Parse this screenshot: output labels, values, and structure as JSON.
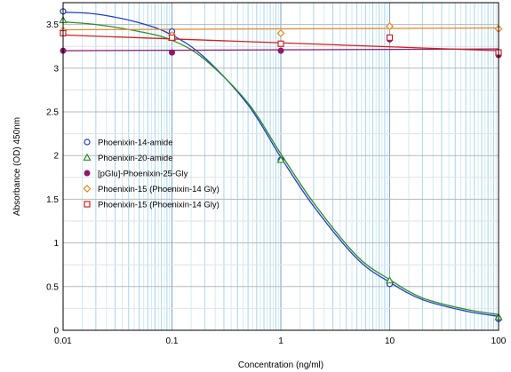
{
  "chart_data": {
    "type": "scatter",
    "xlabel": "Concentration (ng/ml)",
    "ylabel": "Absorbance (OD) 450nm",
    "xscale": "log",
    "xlim": [
      0.01,
      100
    ],
    "ylim": [
      0,
      3.75
    ],
    "x_tick_labels": [
      "0.01",
      "0.1",
      "1",
      "10",
      "100"
    ],
    "y_tick_labels": [
      "0",
      "0.5",
      "1",
      "1.5",
      "2",
      "2.5",
      "3",
      "3.5"
    ],
    "grid": true,
    "legend_position": "left-middle",
    "series": [
      {
        "name": "Phoenixin-14-amide",
        "color": "#1f3fbf",
        "marker": "circle-open",
        "points": [
          [
            0.01,
            3.65
          ],
          [
            0.1,
            3.42
          ],
          [
            1,
            1.95
          ],
          [
            10,
            0.53
          ],
          [
            100,
            0.13
          ]
        ],
        "curve": [
          [
            0.01,
            3.64
          ],
          [
            0.02,
            3.62
          ],
          [
            0.05,
            3.52
          ],
          [
            0.1,
            3.38
          ],
          [
            0.2,
            3.12
          ],
          [
            0.5,
            2.58
          ],
          [
            1,
            1.98
          ],
          [
            2,
            1.42
          ],
          [
            5,
            0.82
          ],
          [
            10,
            0.55
          ],
          [
            20,
            0.35
          ],
          [
            50,
            0.22
          ],
          [
            100,
            0.16
          ]
        ]
      },
      {
        "name": "Phoenixin-20-amide",
        "color": "#2e8b2e",
        "marker": "triangle-open",
        "points": [
          [
            0.01,
            3.55
          ],
          [
            0.1,
            3.35
          ],
          [
            1,
            1.95
          ],
          [
            10,
            0.57
          ],
          [
            100,
            0.15
          ]
        ],
        "curve": [
          [
            0.01,
            3.53
          ],
          [
            0.02,
            3.5
          ],
          [
            0.05,
            3.42
          ],
          [
            0.1,
            3.32
          ],
          [
            0.2,
            3.1
          ],
          [
            0.5,
            2.6
          ],
          [
            1,
            2.02
          ],
          [
            2,
            1.46
          ],
          [
            5,
            0.85
          ],
          [
            10,
            0.58
          ],
          [
            20,
            0.37
          ],
          [
            50,
            0.24
          ],
          [
            100,
            0.18
          ]
        ]
      },
      {
        "name": "[pGlu]-Phoenixin-25-Gly",
        "color": "#8b1a6b",
        "marker": "circle-filled",
        "points": [
          [
            0.01,
            3.2
          ],
          [
            0.1,
            3.18
          ],
          [
            1,
            3.2
          ],
          [
            10,
            3.33
          ],
          [
            100,
            3.15
          ]
        ],
        "curve": [
          [
            0.01,
            3.2
          ],
          [
            100,
            3.22
          ]
        ]
      },
      {
        "name": "Phoenixin-15 (Phoenixin-14 Gly)",
        "color": "#e08a2c",
        "marker": "diamond-open",
        "points": [
          [
            0.01,
            3.43
          ],
          [
            0.1,
            3.38
          ],
          [
            1,
            3.4
          ],
          [
            10,
            3.48
          ],
          [
            100,
            3.45
          ]
        ],
        "curve": [
          [
            0.01,
            3.44
          ],
          [
            100,
            3.46
          ]
        ]
      },
      {
        "name": "Phoenixin-15 (Phoenixin-14 Gly)",
        "color": "#cc2222",
        "marker": "square-open",
        "points": [
          [
            0.01,
            3.4
          ],
          [
            0.1,
            3.35
          ],
          [
            1,
            3.28
          ],
          [
            10,
            3.35
          ],
          [
            100,
            3.18
          ]
        ],
        "curve": [
          [
            0.01,
            3.38
          ],
          [
            100,
            3.2
          ]
        ]
      }
    ]
  }
}
